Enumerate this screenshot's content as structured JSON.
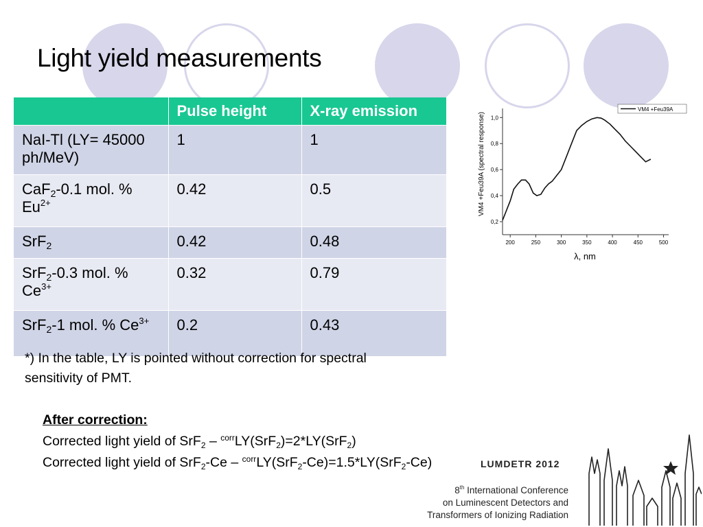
{
  "slide": {
    "title": "Light yield measurements"
  },
  "table": {
    "headers": [
      "",
      "Pulse height",
      "X-ray emission"
    ],
    "rows": [
      {
        "sample_base": "NaI-Tl (LY= 45000 ph/MeV)",
        "pulse_height": "1",
        "xray_emission": "1"
      },
      {
        "sample_base": "CaF",
        "sample_sub": "2",
        "sample_tail": "-0.1 mol. % Eu",
        "sample_sup": "2+",
        "pulse_height": "0.42",
        "xray_emission": "0.5"
      },
      {
        "sample_base": "SrF",
        "sample_sub": "2",
        "pulse_height": "0.42",
        "xray_emission": "0.48"
      },
      {
        "sample_base": "SrF",
        "sample_sub": "2",
        "sample_tail": "-0.3 mol. % Ce",
        "sample_sup": "3+",
        "pulse_height": "0.32",
        "xray_emission": "0.79"
      },
      {
        "sample_base": "SrF",
        "sample_sub": "2",
        "sample_tail": "-1 mol. % Ce",
        "sample_sup": "3+",
        "pulse_height": "0.2",
        "xray_emission": "0.43"
      }
    ]
  },
  "footnote": "*) In the table, LY is pointed without correction for spectral sensitivity of PMT.",
  "correction": {
    "heading": "After correction:",
    "line1": {
      "p1": "Corrected light yield of SrF",
      "s1": "2",
      "p2": " – ",
      "sup": "corr",
      "p3": "LY(SrF",
      "s2": "2",
      "p4": ")=2*LY(SrF",
      "s3": "2",
      "p5": ")"
    },
    "line2": {
      "p1": "Corrected light yield of SrF",
      "s1": "2",
      "p2": "-Ce – ",
      "sup": "corr",
      "p3": "LY(SrF",
      "s2": "2",
      "p4": "-Ce)=1.5*LY(SrF",
      "s3": "2",
      "p5": "-Ce)"
    }
  },
  "conference": {
    "name": "LUMDETR 2012",
    "line1_num": "8",
    "line1_sup": "th",
    "line1_rest": " International Conference",
    "line2": "on Luminescent Detectors and",
    "line3": "Transformers of Ionizing Radiation"
  },
  "chart_data": {
    "type": "line",
    "legend": "VM4 +Feu39A",
    "legend_position": "top-right",
    "xlabel": "λ, nm",
    "ylabel": "VM4 +Feu39A (spectral response)",
    "xlim": [
      185,
      510
    ],
    "ylim": [
      0.1,
      1.07
    ],
    "xticks": [
      200,
      250,
      300,
      350,
      400,
      450,
      500
    ],
    "yticks": [
      0.2,
      0.4,
      0.6,
      0.8,
      1.0
    ],
    "ytick_labels": [
      "0,2",
      "0,4",
      "0,6",
      "0,8",
      "1,0"
    ],
    "series": [
      {
        "name": "VM4 +Feu39A",
        "x": [
          185,
          192,
          200,
          207,
          215,
          222,
          230,
          237,
          245,
          252,
          260,
          268,
          275,
          282,
          290,
          300,
          310,
          320,
          330,
          340,
          350,
          360,
          370,
          378,
          385,
          395,
          405,
          415,
          425,
          435,
          445,
          455,
          465,
          475
        ],
        "y": [
          0.21,
          0.28,
          0.36,
          0.45,
          0.49,
          0.52,
          0.52,
          0.49,
          0.42,
          0.4,
          0.41,
          0.46,
          0.49,
          0.51,
          0.55,
          0.6,
          0.7,
          0.8,
          0.9,
          0.94,
          0.97,
          0.99,
          1.0,
          0.995,
          0.98,
          0.95,
          0.91,
          0.87,
          0.82,
          0.78,
          0.74,
          0.7,
          0.66,
          0.68
        ]
      }
    ]
  }
}
